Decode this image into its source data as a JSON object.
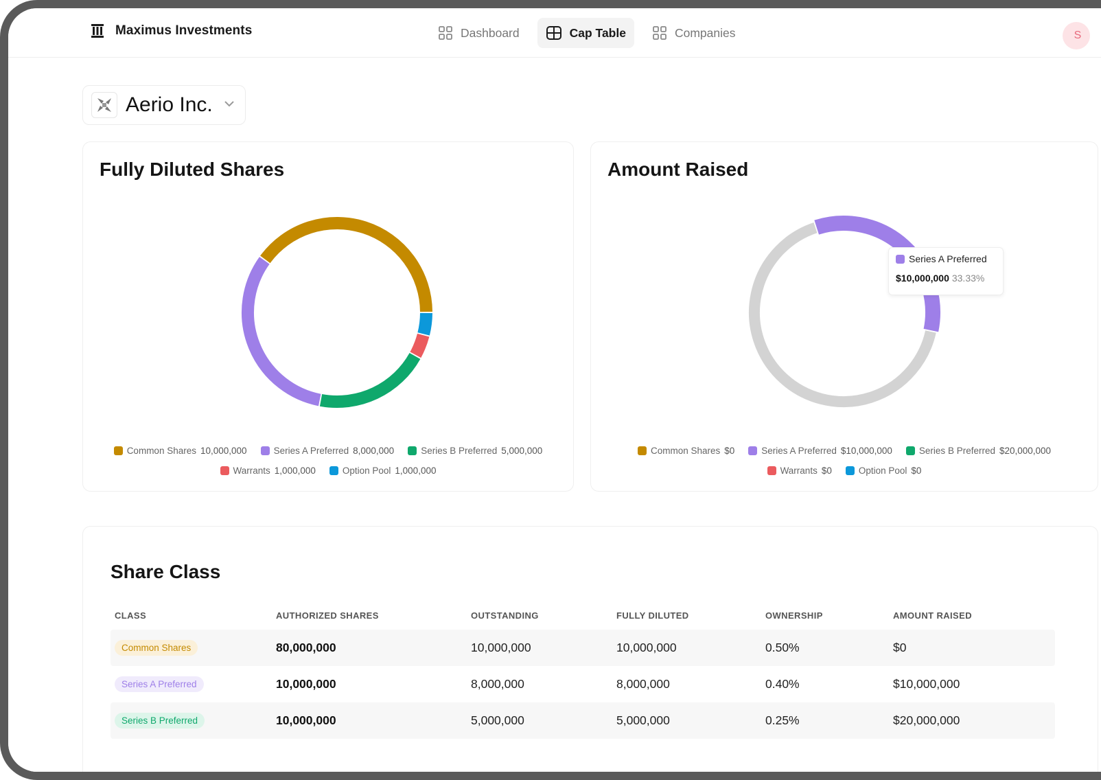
{
  "app": {
    "brand_name": "Maximus Investments",
    "brand_icon": "building-columns-icon",
    "avatar_initial": "S"
  },
  "nav": [
    {
      "label": "Dashboard",
      "icon": "grid-icon",
      "active": false
    },
    {
      "label": "Cap Table",
      "icon": "table-icon",
      "active": true
    },
    {
      "label": "Companies",
      "icon": "grid-icon",
      "active": false
    }
  ],
  "company": {
    "name": "Aerio Inc.",
    "icon": "pinwheel-logo-icon"
  },
  "colors": {
    "common": "#C48A00",
    "seriesA": "#9E7FE8",
    "seriesB": "#0FA86C",
    "warrants": "#EB5B5E",
    "option_pool": "#0C98DA",
    "remainder": "#D3D3D3"
  },
  "shares_card": {
    "title": "Fully Diluted Shares",
    "legend": [
      {
        "label": "Common Shares",
        "value": "10,000,000",
        "color": "#C48A00"
      },
      {
        "label": "Series A Preferred",
        "value": "8,000,000",
        "color": "#9E7FE8"
      },
      {
        "label": "Series B Preferred",
        "value": "5,000,000",
        "color": "#0FA86C"
      },
      {
        "label": "Warrants",
        "value": "1,000,000",
        "color": "#EB5B5E"
      },
      {
        "label": "Option Pool",
        "value": "1,000,000",
        "color": "#0C98DA"
      }
    ]
  },
  "raised_card": {
    "title": "Amount Raised",
    "legend": [
      {
        "label": "Common Shares",
        "value": "$0",
        "color": "#C48A00"
      },
      {
        "label": "Series A Preferred",
        "value": "$10,000,000",
        "color": "#9E7FE8"
      },
      {
        "label": "Series B Preferred",
        "value": "$20,000,000",
        "color": "#0FA86C"
      },
      {
        "label": "Warrants",
        "value": "$0",
        "color": "#EB5B5E"
      },
      {
        "label": "Option Pool",
        "value": "$0",
        "color": "#0C98DA"
      }
    ],
    "tooltip": {
      "label": "Series A Preferred",
      "value": "$10,000,000",
      "percent": "33.33%",
      "color": "#9E7FE8"
    }
  },
  "chart_data": [
    {
      "type": "pie",
      "title": "Fully Diluted Shares",
      "donut": true,
      "start_angle_deg": 90,
      "categories": [
        "Common Shares",
        "Option Pool",
        "Warrants",
        "Series B Preferred",
        "Series A Preferred"
      ],
      "values": [
        10000000,
        1000000,
        1000000,
        5000000,
        8000000
      ],
      "colors": [
        "#C48A00",
        "#0C98DA",
        "#EB5B5E",
        "#0FA86C",
        "#9E7FE8"
      ]
    },
    {
      "type": "pie",
      "title": "Amount Raised",
      "donut": true,
      "start_angle_deg": 0,
      "categories": [
        "Series A Preferred",
        "Remainder (Series B Preferred dimmed)"
      ],
      "values": [
        10000000,
        20000000
      ],
      "colors": [
        "#9E7FE8",
        "#D3D3D3"
      ],
      "highlighted": "Series A Preferred"
    }
  ],
  "share_class": {
    "title": "Share Class",
    "columns": [
      "CLASS",
      "AUTHORIZED SHARES",
      "OUTSTANDING",
      "FULLY DILUTED",
      "OWNERSHIP",
      "AMOUNT RAISED"
    ],
    "rows": [
      {
        "class": "Common Shares",
        "pill_bg": "#FBF0D9",
        "pill_fg": "#C48A00",
        "authorized": "80,000,000",
        "outstanding": "10,000,000",
        "fully_diluted": "10,000,000",
        "ownership": "0.50%",
        "amount_raised": "$0"
      },
      {
        "class": "Series A Preferred",
        "pill_bg": "#F0EBFC",
        "pill_fg": "#9E7FE8",
        "authorized": "10,000,000",
        "outstanding": "8,000,000",
        "fully_diluted": "8,000,000",
        "ownership": "0.40%",
        "amount_raised": "$10,000,000"
      },
      {
        "class": "Series B Preferred",
        "pill_bg": "#DDF5EA",
        "pill_fg": "#0FA86C",
        "authorized": "10,000,000",
        "outstanding": "5,000,000",
        "fully_diluted": "5,000,000",
        "ownership": "0.25%",
        "amount_raised": "$20,000,000"
      }
    ]
  }
}
